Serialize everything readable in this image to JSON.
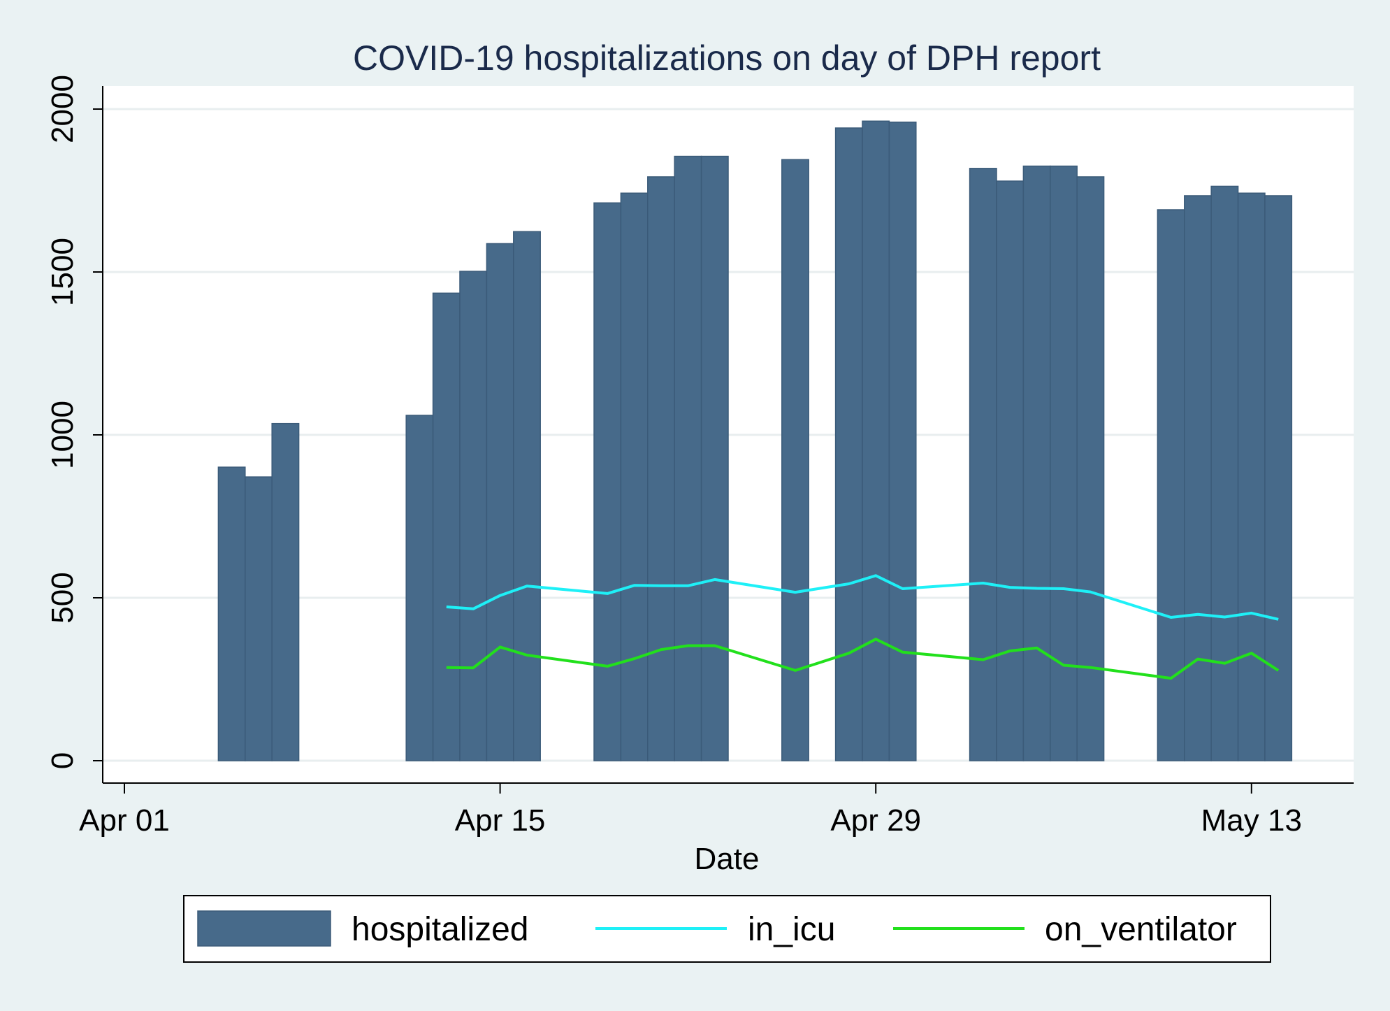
{
  "chart_data": {
    "type": "bar",
    "title": "COVID-19 hospitalizations on day of DPH report",
    "xlabel": "Date",
    "ylabel": "",
    "ylim": [
      0,
      2000
    ],
    "xlim": [
      "2020-04-01",
      "2020-05-16"
    ],
    "yticks": [
      0,
      500,
      1000,
      1500,
      2000
    ],
    "xticks": [
      {
        "date": "2020-04-01",
        "label": "Apr 01"
      },
      {
        "date": "2020-04-15",
        "label": "Apr 15"
      },
      {
        "date": "2020-04-29",
        "label": "Apr 29"
      },
      {
        "date": "2020-05-13",
        "label": "May 13"
      }
    ],
    "grid": true,
    "legend_position": "bottom",
    "series": [
      {
        "name": "hospitalized",
        "kind": "bar",
        "color": "#476a8a",
        "points": [
          [
            "2020-04-05",
            901
          ],
          [
            "2020-04-06",
            871
          ],
          [
            "2020-04-07",
            1035
          ],
          [
            "2020-04-12",
            1060
          ],
          [
            "2020-04-13",
            1435
          ],
          [
            "2020-04-14",
            1502
          ],
          [
            "2020-04-15",
            1587
          ],
          [
            "2020-04-16",
            1624
          ],
          [
            "2020-04-19",
            1712
          ],
          [
            "2020-04-20",
            1742
          ],
          [
            "2020-04-21",
            1792
          ],
          [
            "2020-04-22",
            1855
          ],
          [
            "2020-04-23",
            1855
          ],
          [
            "2020-04-26",
            1845
          ],
          [
            "2020-04-28",
            1942
          ],
          [
            "2020-04-29",
            1963
          ],
          [
            "2020-04-30",
            1960
          ],
          [
            "2020-05-03",
            1818
          ],
          [
            "2020-05-04",
            1779
          ],
          [
            "2020-05-05",
            1825
          ],
          [
            "2020-05-06",
            1825
          ],
          [
            "2020-05-07",
            1792
          ],
          [
            "2020-05-10",
            1691
          ],
          [
            "2020-05-11",
            1734
          ],
          [
            "2020-05-12",
            1763
          ],
          [
            "2020-05-13",
            1742
          ],
          [
            "2020-05-14",
            1734
          ]
        ]
      },
      {
        "name": "in_icu",
        "kind": "line",
        "color": "#1ef0f7",
        "points": [
          [
            "2020-04-13",
            472
          ],
          [
            "2020-04-14",
            466
          ],
          [
            "2020-04-15",
            507
          ],
          [
            "2020-04-16",
            536
          ],
          [
            "2020-04-19",
            513
          ],
          [
            "2020-04-20",
            538
          ],
          [
            "2020-04-21",
            537
          ],
          [
            "2020-04-22",
            537
          ],
          [
            "2020-04-23",
            556
          ],
          [
            "2020-04-26",
            517
          ],
          [
            "2020-04-28",
            543
          ],
          [
            "2020-04-29",
            568
          ],
          [
            "2020-04-30",
            528
          ],
          [
            "2020-05-03",
            545
          ],
          [
            "2020-05-04",
            532
          ],
          [
            "2020-05-05",
            529
          ],
          [
            "2020-05-06",
            528
          ],
          [
            "2020-05-07",
            518
          ],
          [
            "2020-05-10",
            440
          ],
          [
            "2020-05-11",
            449
          ],
          [
            "2020-05-12",
            441
          ],
          [
            "2020-05-13",
            453
          ],
          [
            "2020-05-14",
            434
          ]
        ]
      },
      {
        "name": "on_ventilator",
        "kind": "line",
        "color": "#22e01c",
        "points": [
          [
            "2020-04-13",
            286
          ],
          [
            "2020-04-14",
            285
          ],
          [
            "2020-04-15",
            349
          ],
          [
            "2020-04-16",
            324
          ],
          [
            "2020-04-19",
            290
          ],
          [
            "2020-04-20",
            313
          ],
          [
            "2020-04-21",
            341
          ],
          [
            "2020-04-22",
            353
          ],
          [
            "2020-04-23",
            353
          ],
          [
            "2020-04-26",
            277
          ],
          [
            "2020-04-28",
            330
          ],
          [
            "2020-04-29",
            373
          ],
          [
            "2020-04-30",
            333
          ],
          [
            "2020-05-03",
            310
          ],
          [
            "2020-05-04",
            337
          ],
          [
            "2020-05-05",
            346
          ],
          [
            "2020-05-06",
            293
          ],
          [
            "2020-05-07",
            286
          ],
          [
            "2020-05-10",
            253
          ],
          [
            "2020-05-11",
            312
          ],
          [
            "2020-05-12",
            299
          ],
          [
            "2020-05-13",
            330
          ],
          [
            "2020-05-14",
            277
          ]
        ]
      }
    ]
  }
}
